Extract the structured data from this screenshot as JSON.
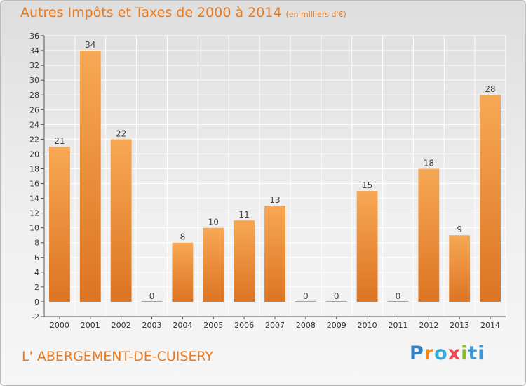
{
  "header": {
    "title": "Autres Impôts et Taxes de 2000 à 2014",
    "unit": "(en milliers d'€)"
  },
  "footer": {
    "commune": "L' ABERGEMENT-DE-CUISERY",
    "logo": [
      "P",
      "r",
      "o",
      "x",
      "i",
      "ti"
    ]
  },
  "colors": {
    "accent": "#ea7a1e",
    "bar_top": "#f7a854",
    "bar_bottom": "#dc7422",
    "grid": "#ffffff"
  },
  "chart_data": {
    "type": "bar",
    "categories": [
      "2000",
      "2001",
      "2002",
      "2003",
      "2004",
      "2005",
      "2006",
      "2007",
      "2008",
      "2009",
      "2010",
      "2011",
      "2012",
      "2013",
      "2014"
    ],
    "values": [
      21,
      34,
      22,
      0,
      8,
      10,
      11,
      13,
      0,
      0,
      15,
      0,
      18,
      9,
      28
    ],
    "ylim": [
      -2,
      36
    ],
    "yticks": [
      -2,
      0,
      2,
      4,
      6,
      8,
      10,
      12,
      14,
      16,
      18,
      20,
      22,
      24,
      26,
      28,
      30,
      32,
      34,
      36
    ],
    "grid": true,
    "data_labels": true
  }
}
